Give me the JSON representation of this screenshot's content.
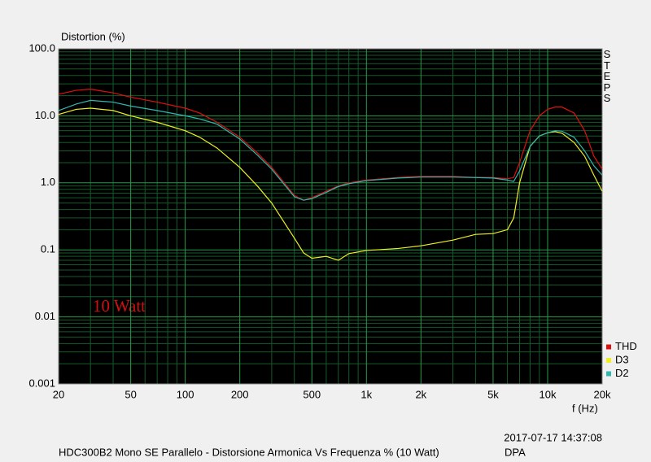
{
  "chart_data": {
    "type": "line",
    "title": "HDC300B2 Mono SE Parallelo - Distorsione Armonica Vs Frequenza % (10 Watt)",
    "ylabel": "Distortion (%)",
    "xlabel": "f (Hz)",
    "side_label": "STEPS",
    "annotation": "10 Watt",
    "timestamp": "2017-07-17 14:37:08",
    "source": "DPA",
    "xscale": "log",
    "yscale": "log",
    "grid": true,
    "xlim": [
      20,
      20000
    ],
    "ylim": [
      0.001,
      100
    ],
    "xticks": [
      20,
      50,
      100,
      200,
      500,
      {
        "value": 1000,
        "label": "1k"
      },
      {
        "value": 2000,
        "label": "2k"
      },
      {
        "value": 5000,
        "label": "5k"
      },
      {
        "value": 10000,
        "label": "10k"
      },
      {
        "value": 20000,
        "label": "20k"
      }
    ],
    "yticks": [
      {
        "value": 100,
        "label": "100.0"
      },
      {
        "value": 10,
        "label": "10.0"
      },
      {
        "value": 1,
        "label": "1.0"
      },
      0.1,
      0.01,
      0.001
    ],
    "xminor": [
      30,
      40,
      60,
      70,
      80,
      90,
      300,
      400,
      600,
      700,
      800,
      900,
      3000,
      4000,
      6000,
      7000,
      8000,
      9000
    ],
    "yminor": [
      0.002,
      0.003,
      0.004,
      0.005,
      0.006,
      0.007,
      0.008,
      0.009,
      0.02,
      0.03,
      0.04,
      0.05,
      0.06,
      0.07,
      0.08,
      0.09,
      0.2,
      0.3,
      0.4,
      0.5,
      0.6,
      0.7,
      0.8,
      0.9,
      2,
      3,
      4,
      5,
      6,
      7,
      8,
      9,
      20,
      30,
      40,
      50,
      60,
      70,
      80,
      90
    ],
    "legend": "lower right",
    "x": [
      20,
      25,
      30,
      40,
      50,
      70,
      100,
      120,
      150,
      200,
      250,
      300,
      400,
      450,
      500,
      600,
      700,
      800,
      1000,
      1500,
      2000,
      3000,
      4000,
      5000,
      6000,
      6500,
      7000,
      8000,
      9000,
      10000,
      11000,
      12000,
      14000,
      16000,
      18000,
      20000
    ],
    "series": [
      {
        "name": "THD",
        "color": "#e01010",
        "values": [
          21,
          24,
          25,
          22,
          19,
          16,
          13,
          11,
          8,
          4.8,
          2.8,
          1.7,
          0.65,
          0.55,
          0.6,
          0.75,
          0.9,
          1.0,
          1.1,
          1.2,
          1.25,
          1.25,
          1.2,
          1.2,
          1.15,
          1.2,
          2,
          6,
          10,
          12.5,
          13.5,
          13.5,
          11,
          6,
          2.5,
          1.6
        ]
      },
      {
        "name": "D3",
        "color": "#f0f020",
        "values": [
          10.5,
          12.5,
          13,
          12,
          10,
          8,
          6,
          4.8,
          3.3,
          1.7,
          0.9,
          0.5,
          0.15,
          0.09,
          0.075,
          0.08,
          0.07,
          0.088,
          0.098,
          0.105,
          0.115,
          0.14,
          0.17,
          0.175,
          0.2,
          0.3,
          1,
          3.5,
          5,
          5.6,
          5.8,
          5.5,
          4,
          2.5,
          1.3,
          0.75
        ]
      },
      {
        "name": "D2",
        "color": "#30b8b0",
        "values": [
          12,
          15,
          17,
          16,
          14,
          12,
          10,
          9,
          7.5,
          4.5,
          2.6,
          1.6,
          0.62,
          0.55,
          0.58,
          0.72,
          0.88,
          0.97,
          1.08,
          1.18,
          1.22,
          1.22,
          1.2,
          1.18,
          1.1,
          1.05,
          1.5,
          3.5,
          5,
          5.6,
          6,
          5.9,
          4.8,
          3,
          1.8,
          1.3
        ]
      }
    ]
  }
}
